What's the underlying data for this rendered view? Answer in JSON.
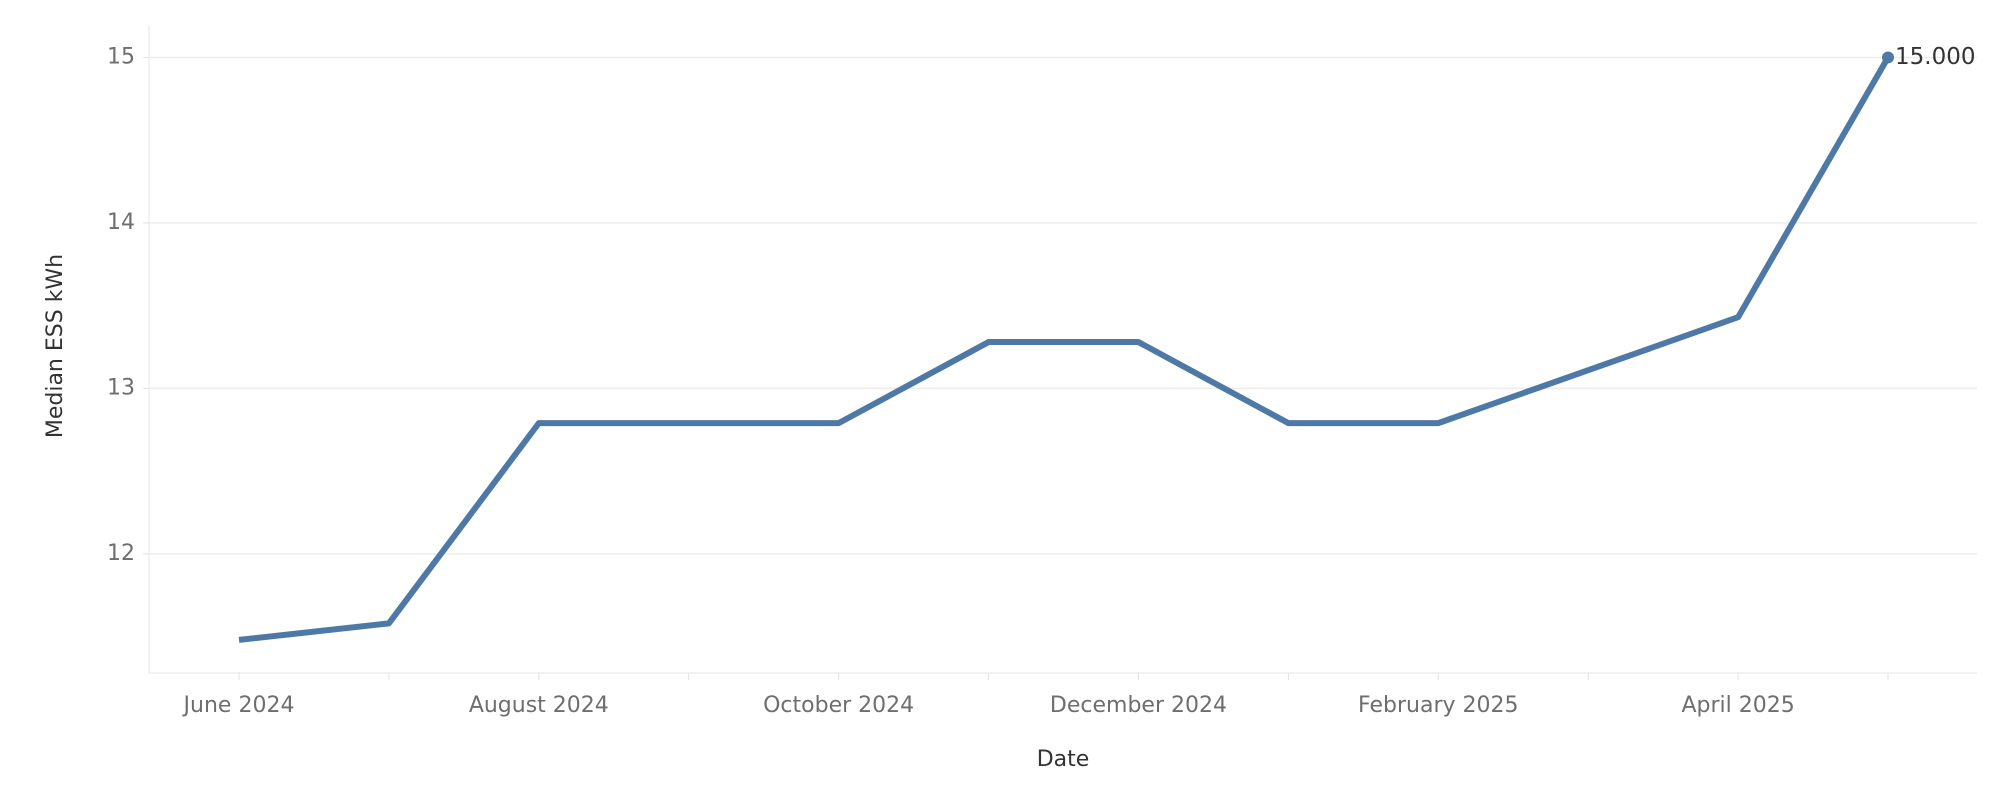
{
  "chart_data": {
    "type": "line",
    "x_label": "Date",
    "y_label": "Median ESS kWh",
    "categories": [
      "June 2024",
      null,
      "August 2024",
      null,
      "October 2024",
      null,
      "December 2024",
      null,
      "February 2025",
      null,
      "April 2025",
      null
    ],
    "series": [
      {
        "color": "#4e79a7",
        "values": [
          11.48,
          11.58,
          12.79,
          12.79,
          12.79,
          13.28,
          13.28,
          12.79,
          12.79,
          13.11,
          13.43,
          15.0
        ],
        "value_labels": [
          null,
          null,
          null,
          null,
          null,
          null,
          null,
          null,
          null,
          null,
          null,
          "15.000"
        ]
      }
    ],
    "ylim": [
      11.28,
      15.19
    ],
    "yticks": [
      12,
      13,
      14,
      15
    ],
    "grid": true
  }
}
